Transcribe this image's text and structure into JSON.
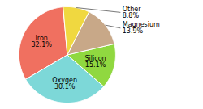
{
  "chart_data": {
    "type": "pie",
    "categories": [
      "Iron",
      "Oxygen",
      "Silicon",
      "Magnesium",
      "Other"
    ],
    "values": [
      32.1,
      30.1,
      15.1,
      13.9,
      8.8
    ],
    "value_labels": [
      "32.1%",
      "30.1%",
      "15.1%",
      "13.9%",
      "8.8%"
    ],
    "colors": [
      "#f07060",
      "#7dd8d8",
      "#90d840",
      "#c8a888",
      "#f0d840"
    ],
    "data_labels": true
  }
}
